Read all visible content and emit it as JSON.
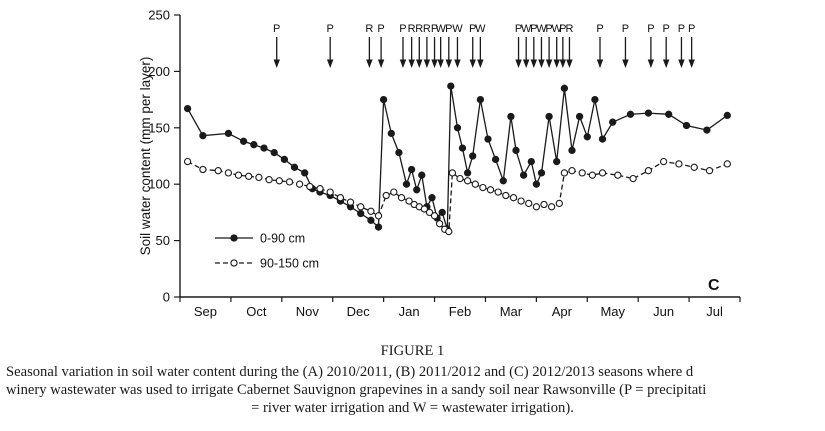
{
  "page": {
    "background": "#ffffff",
    "ink_color": "#1a1a1a"
  },
  "chart_data": {
    "type": "line",
    "title": "",
    "xlabel": "",
    "ylabel": "Soil water content (mm per layer)",
    "ylim": [
      0,
      250
    ],
    "yticks": [
      0,
      50,
      100,
      150,
      200,
      250
    ],
    "x_months": [
      "Sep",
      "Oct",
      "Nov",
      "Dec",
      "Jan",
      "Feb",
      "Mar",
      "Apr",
      "May",
      "Jun",
      "Jul"
    ],
    "grid": false,
    "panel_label": "C",
    "legend_position": "inside-lower-left",
    "series": [
      {
        "name": "0-90 cm",
        "line_style": "solid",
        "marker": "filled-circle",
        "color": "#1a1a1a",
        "points": [
          [
            0.15,
            167
          ],
          [
            0.45,
            143
          ],
          [
            0.95,
            145
          ],
          [
            1.25,
            138
          ],
          [
            1.45,
            135
          ],
          [
            1.65,
            132
          ],
          [
            1.85,
            128
          ],
          [
            2.05,
            122
          ],
          [
            2.25,
            115
          ],
          [
            2.45,
            110
          ],
          [
            2.6,
            96
          ],
          [
            2.75,
            93
          ],
          [
            2.95,
            90
          ],
          [
            3.15,
            85
          ],
          [
            3.35,
            80
          ],
          [
            3.55,
            74
          ],
          [
            3.75,
            68
          ],
          [
            3.9,
            62
          ],
          [
            4.0,
            175
          ],
          [
            4.15,
            145
          ],
          [
            4.3,
            128
          ],
          [
            4.45,
            100
          ],
          [
            4.55,
            113
          ],
          [
            4.65,
            95
          ],
          [
            4.75,
            108
          ],
          [
            4.85,
            80
          ],
          [
            4.95,
            88
          ],
          [
            5.05,
            70
          ],
          [
            5.15,
            75
          ],
          [
            5.25,
            60
          ],
          [
            5.32,
            187
          ],
          [
            5.45,
            150
          ],
          [
            5.55,
            132
          ],
          [
            5.65,
            110
          ],
          [
            5.75,
            125
          ],
          [
            5.9,
            175
          ],
          [
            6.05,
            140
          ],
          [
            6.2,
            122
          ],
          [
            6.35,
            103
          ],
          [
            6.5,
            160
          ],
          [
            6.6,
            130
          ],
          [
            6.75,
            108
          ],
          [
            6.9,
            120
          ],
          [
            7.0,
            100
          ],
          [
            7.1,
            110
          ],
          [
            7.25,
            160
          ],
          [
            7.4,
            120
          ],
          [
            7.55,
            185
          ],
          [
            7.7,
            130
          ],
          [
            7.85,
            160
          ],
          [
            8.0,
            142
          ],
          [
            8.15,
            175
          ],
          [
            8.3,
            140
          ],
          [
            8.5,
            155
          ],
          [
            8.85,
            162
          ],
          [
            9.2,
            163
          ],
          [
            9.6,
            162
          ],
          [
            9.95,
            152
          ],
          [
            10.35,
            148
          ],
          [
            10.75,
            161
          ]
        ]
      },
      {
        "name": "90-150 cm",
        "line_style": "dashed",
        "marker": "open-circle",
        "color": "#1a1a1a",
        "points": [
          [
            0.15,
            120
          ],
          [
            0.45,
            113
          ],
          [
            0.75,
            112
          ],
          [
            0.95,
            110
          ],
          [
            1.15,
            108
          ],
          [
            1.35,
            107
          ],
          [
            1.55,
            106
          ],
          [
            1.75,
            104
          ],
          [
            1.95,
            103
          ],
          [
            2.15,
            102
          ],
          [
            2.35,
            100
          ],
          [
            2.55,
            98
          ],
          [
            2.75,
            96
          ],
          [
            2.95,
            93
          ],
          [
            3.15,
            88
          ],
          [
            3.35,
            84
          ],
          [
            3.55,
            80
          ],
          [
            3.75,
            76
          ],
          [
            3.9,
            72
          ],
          [
            4.05,
            90
          ],
          [
            4.2,
            93
          ],
          [
            4.35,
            88
          ],
          [
            4.5,
            85
          ],
          [
            4.6,
            82
          ],
          [
            4.7,
            80
          ],
          [
            4.8,
            78
          ],
          [
            4.9,
            75
          ],
          [
            5.0,
            72
          ],
          [
            5.1,
            65
          ],
          [
            5.2,
            60
          ],
          [
            5.28,
            58
          ],
          [
            5.35,
            110
          ],
          [
            5.5,
            105
          ],
          [
            5.65,
            103
          ],
          [
            5.8,
            100
          ],
          [
            5.95,
            97
          ],
          [
            6.1,
            95
          ],
          [
            6.25,
            93
          ],
          [
            6.4,
            90
          ],
          [
            6.55,
            88
          ],
          [
            6.7,
            85
          ],
          [
            6.85,
            83
          ],
          [
            7.0,
            80
          ],
          [
            7.15,
            82
          ],
          [
            7.3,
            80
          ],
          [
            7.45,
            83
          ],
          [
            7.55,
            110
          ],
          [
            7.7,
            112
          ],
          [
            7.9,
            110
          ],
          [
            8.1,
            108
          ],
          [
            8.3,
            110
          ],
          [
            8.6,
            108
          ],
          [
            8.9,
            105
          ],
          [
            9.2,
            112
          ],
          [
            9.5,
            120
          ],
          [
            9.8,
            118
          ],
          [
            10.1,
            115
          ],
          [
            10.4,
            112
          ],
          [
            10.75,
            118
          ]
        ]
      }
    ],
    "event_markers": {
      "description": "Downward arrows marking precipitation (P), river water irrigation (R) and wastewater irrigation (W) events",
      "items": [
        {
          "x": 1.9,
          "label": "P"
        },
        {
          "x": 2.95,
          "label": "P"
        },
        {
          "x": 3.72,
          "label": "R"
        },
        {
          "x": 3.95,
          "label": "P"
        },
        {
          "x": 4.38,
          "label": "P"
        },
        {
          "x": 4.55,
          "label": "R"
        },
        {
          "x": 4.7,
          "label": "R"
        },
        {
          "x": 4.85,
          "label": "R"
        },
        {
          "x": 5.0,
          "label": "P"
        },
        {
          "x": 5.12,
          "label": "W"
        },
        {
          "x": 5.28,
          "label": "P"
        },
        {
          "x": 5.45,
          "label": "W"
        },
        {
          "x": 5.75,
          "label": "P"
        },
        {
          "x": 5.9,
          "label": "W"
        },
        {
          "x": 6.65,
          "label": "P"
        },
        {
          "x": 6.8,
          "label": "W"
        },
        {
          "x": 6.95,
          "label": "P"
        },
        {
          "x": 7.1,
          "label": "W"
        },
        {
          "x": 7.25,
          "label": "P"
        },
        {
          "x": 7.4,
          "label": "W"
        },
        {
          "x": 7.52,
          "label": "P"
        },
        {
          "x": 7.65,
          "label": "R"
        },
        {
          "x": 8.25,
          "label": "P"
        },
        {
          "x": 8.75,
          "label": "P"
        },
        {
          "x": 9.25,
          "label": "P"
        },
        {
          "x": 9.55,
          "label": "P"
        },
        {
          "x": 9.85,
          "label": "P"
        },
        {
          "x": 10.05,
          "label": "P"
        }
      ]
    }
  },
  "caption": {
    "figure_label": "FIGURE 1",
    "lines": [
      "Seasonal variation in soil water content during the (A) 2010/2011, (B) 2011/2012 and (C) 2012/2013 seasons where d",
      "winery wastewater was used to irrigate Cabernet Sauvignon grapevines in a sandy soil near Rawsonville (P = precipitati",
      "= river water irrigation and W = wastewater irrigation)."
    ]
  }
}
